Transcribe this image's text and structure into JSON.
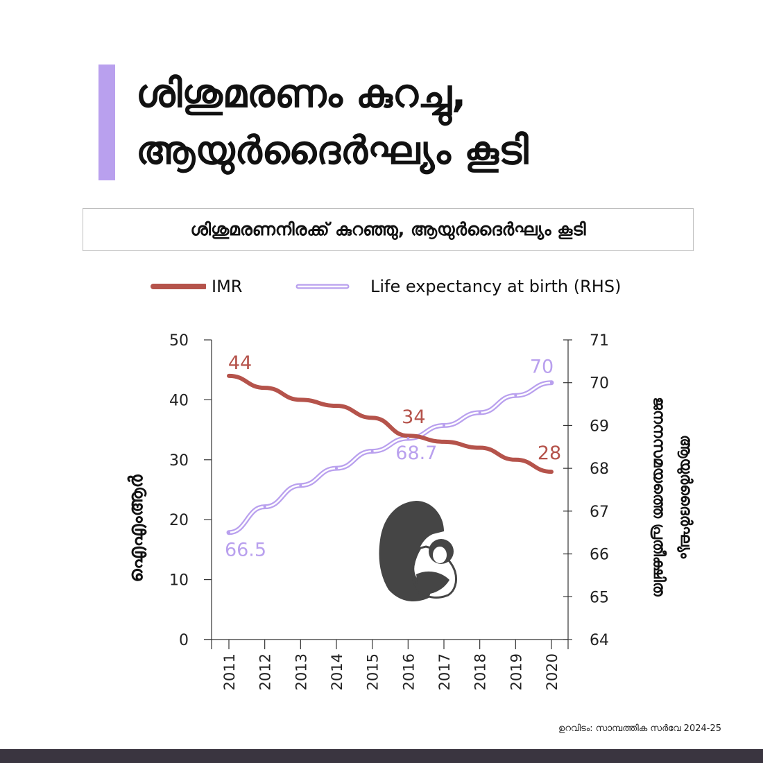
{
  "header": {
    "title_line1": "ശിശുമരണം കുറച്ചു,",
    "title_line2": "ആയുർദൈർഘ്യം കൂടി",
    "subtitle": "ശിശുമരണനിരക്ക് കുറഞ്ഞു, ആയുർദൈർഘ്യം കൂടി"
  },
  "legend": {
    "imr_label": "IMR",
    "life_label": "Life expectancy at birth (RHS)"
  },
  "colors": {
    "imr": "#b5534b",
    "life": "#b9a0ee",
    "accent": "#b9a0ee",
    "axis": "#333333",
    "footer": "#3a3540"
  },
  "chart_data": {
    "type": "line",
    "x": [
      "2011",
      "2012",
      "2013",
      "2014",
      "2015",
      "2016",
      "2017",
      "2018",
      "2019",
      "2020"
    ],
    "series": [
      {
        "name": "IMR",
        "axis": "left",
        "color": "#b5534b",
        "values": [
          44,
          42,
          40,
          39,
          37,
          34,
          33,
          32,
          30,
          28
        ]
      },
      {
        "name": "Life expectancy at birth (RHS)",
        "axis": "right",
        "color": "#b9a0ee",
        "values": [
          66.5,
          67.1,
          67.6,
          68.0,
          68.4,
          68.7,
          69.0,
          69.3,
          69.7,
          70.0
        ]
      }
    ],
    "annotations": [
      {
        "series": 0,
        "index": 0,
        "text": "44"
      },
      {
        "series": 0,
        "index": 5,
        "text": "34"
      },
      {
        "series": 0,
        "index": 9,
        "text": "28"
      },
      {
        "series": 1,
        "index": 0,
        "text": "66.5"
      },
      {
        "series": 1,
        "index": 5,
        "text": "68.7"
      },
      {
        "series": 1,
        "index": 9,
        "text": "70"
      }
    ],
    "y_left": {
      "label": "ഐഎംആർ",
      "ylim": [
        0,
        50
      ],
      "ticks": [
        "0",
        "10",
        "20",
        "30",
        "40",
        "50"
      ]
    },
    "y_right": {
      "label_line1": "ജനനസമയത്തെ പ്രതീക്ഷിത",
      "label_line2": "ആയുർദൈർഘ്യം",
      "ylim": [
        64,
        71
      ],
      "ticks": [
        "64",
        "65",
        "66",
        "67",
        "68",
        "69",
        "70",
        "71"
      ]
    },
    "grid": false,
    "legend_position": "top"
  },
  "illustration": {
    "icon": "mother-baby-icon"
  },
  "footer": {
    "source": "ഉറവിടം: സാമ്പത്തിക സർവേ 2024-25"
  }
}
